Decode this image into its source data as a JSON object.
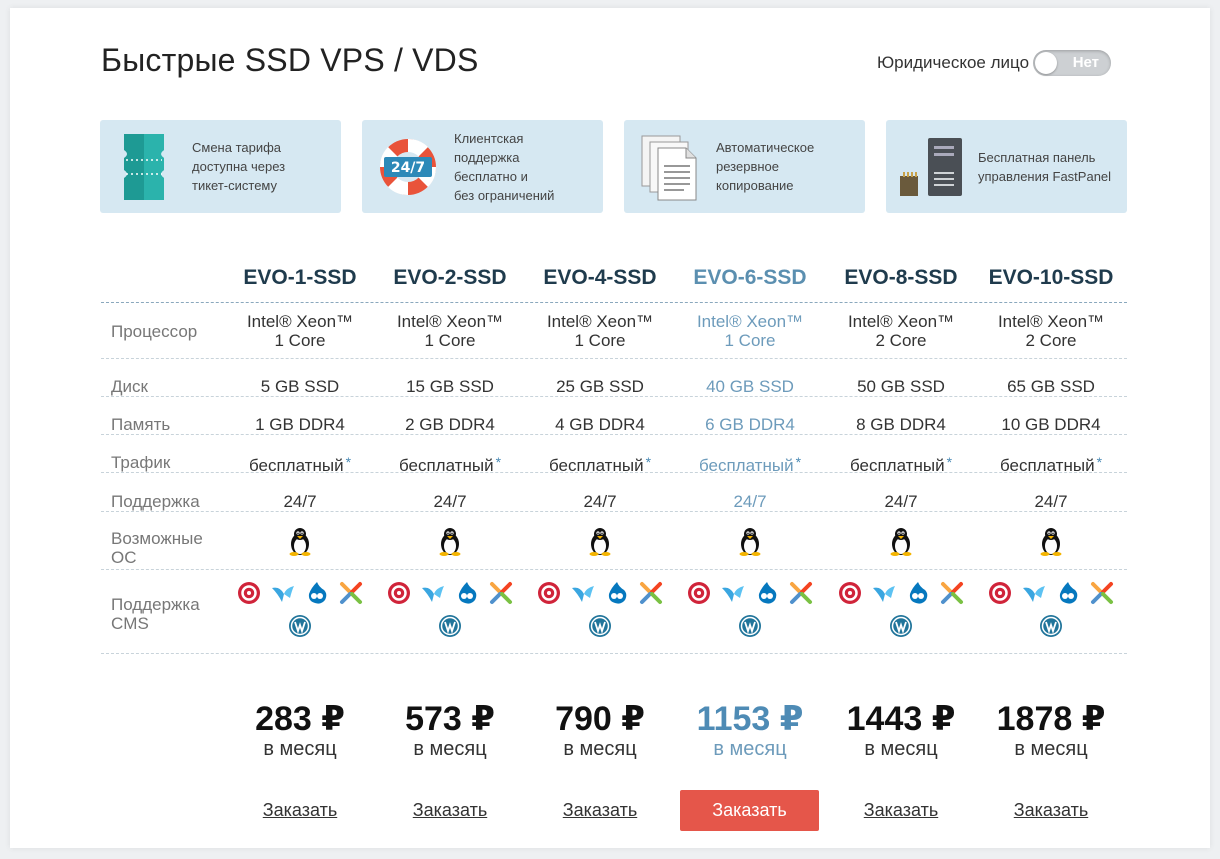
{
  "page": {
    "title": "Быстрые SSD VPS / VDS"
  },
  "legal": {
    "label": "Юридическое лицо",
    "toggle_text": "Нет"
  },
  "features": [
    {
      "icon": "ticket-icon",
      "text": [
        "Смена тарифа",
        "доступна через",
        "тикет-систему"
      ]
    },
    {
      "icon": "lifebuoy-24-7-icon",
      "icon_text": "24/7",
      "text": [
        "Клиентская",
        "поддержка",
        "бесплатно и",
        "без ограничений"
      ]
    },
    {
      "icon": "documents-backup-icon",
      "text": [
        "Автоматическое",
        "резервное",
        "копирование"
      ]
    },
    {
      "icon": "server-panel-icon",
      "text": [
        "Бесплатная панель",
        "управления FastPanel"
      ]
    }
  ],
  "row_labels": {
    "cpu": "Процессор",
    "disk": "Диск",
    "ram": "Память",
    "traffic": "Трафик",
    "support": "Поддержка",
    "os": [
      "Возможные",
      "ОС"
    ],
    "cms": [
      "Поддержка",
      "CMS"
    ]
  },
  "plans": [
    {
      "name": "EVO-1-SSD",
      "cpu": [
        "Intel® Xeon™",
        "1 Core"
      ],
      "disk": "5 GB SSD",
      "ram": "1 GB DDR4",
      "traffic": "бесплатный",
      "support": "24/7",
      "price": "283 ₽",
      "per": "в месяц",
      "order": "Заказать"
    },
    {
      "name": "EVO-2-SSD",
      "cpu": [
        "Intel® Xeon™",
        "1 Core"
      ],
      "disk": "15 GB SSD",
      "ram": "2 GB DDR4",
      "traffic": "бесплатный",
      "support": "24/7",
      "price": "573 ₽",
      "per": "в месяц",
      "order": "Заказать"
    },
    {
      "name": "EVO-4-SSD",
      "cpu": [
        "Intel® Xeon™",
        "1 Core"
      ],
      "disk": "25 GB SSD",
      "ram": "4 GB DDR4",
      "traffic": "бесплатный",
      "support": "24/7",
      "price": "790 ₽",
      "per": "в месяц",
      "order": "Заказать"
    },
    {
      "name": "EVO-6-SSD",
      "cpu": [
        "Intel® Xeon™",
        "1 Core"
      ],
      "disk": "40 GB SSD",
      "ram": "6 GB DDR4",
      "traffic": "бесплатный",
      "support": "24/7",
      "price": "1153 ₽",
      "per": "в месяц",
      "order": "Заказать",
      "highlighted": true
    },
    {
      "name": "EVO-8-SSD",
      "cpu": [
        "Intel® Xeon™",
        "2 Core"
      ],
      "disk": "50 GB SSD",
      "ram": "8 GB DDR4",
      "traffic": "бесплатный",
      "support": "24/7",
      "price": "1443 ₽",
      "per": "в месяц",
      "order": "Заказать"
    },
    {
      "name": "EVO-10-SSD",
      "cpu": [
        "Intel® Xeon™",
        "2 Core"
      ],
      "disk": "65 GB SSD",
      "ram": "10 GB DDR4",
      "traffic": "бесплатный",
      "support": "24/7",
      "price": "1878 ₽",
      "per": "в месяц",
      "order": "Заказать"
    }
  ],
  "traffic_note_mark": "*",
  "os_icon": "linux-tux-icon",
  "cms_icons": [
    "bitrix-icon",
    "modx-icon",
    "drupal-icon",
    "joomla-icon",
    "wordpress-icon"
  ],
  "colors": {
    "accent_blue": "#4e8bb5",
    "order_button": "#e5564a",
    "feature_bg": "#d6e8f2",
    "plan_name": "#1f3b4d"
  }
}
